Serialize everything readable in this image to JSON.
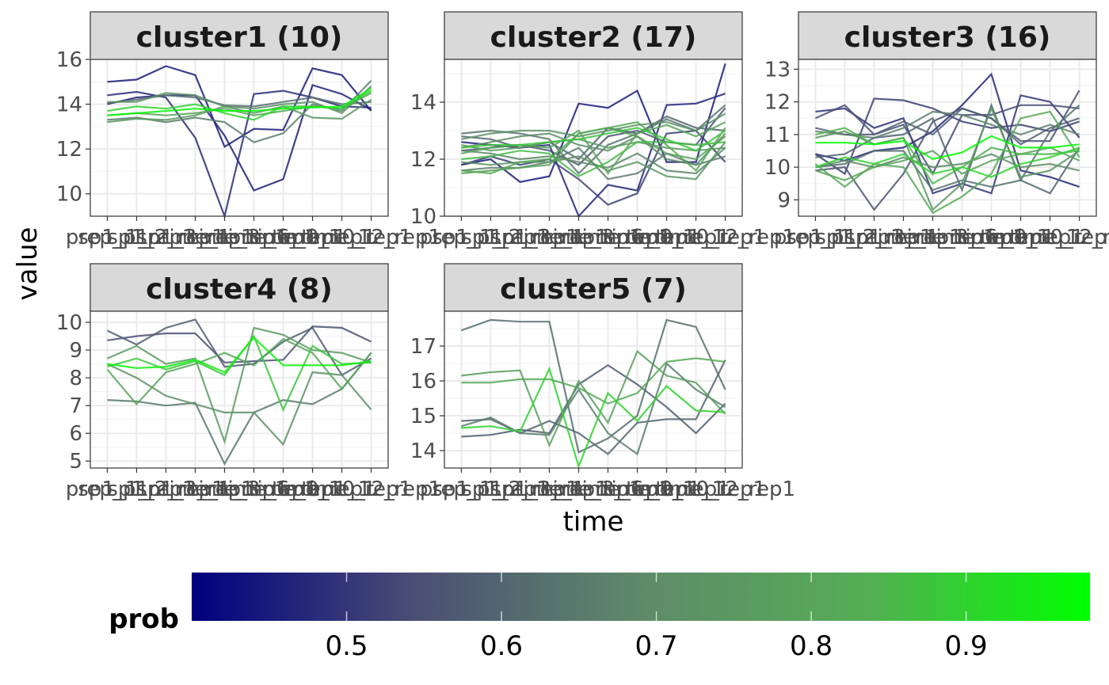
{
  "chart_data": {
    "type": "line",
    "facet_layout": "3 columns, 2 rows",
    "xlabel": "time",
    "ylabel": "value",
    "x_tick_labels_overlapping": "prep_p1 ... time_12_rep1 (labels overlap and are illegible)",
    "legend": {
      "title": "prob",
      "placement": "bottom",
      "type": "colorbar",
      "ticks": [
        0.5,
        0.6,
        0.7,
        0.8,
        0.9
      ],
      "range": [
        0.4,
        0.98
      ],
      "colors": [
        "#00007f",
        "#4a4f74",
        "#5f8a6a",
        "#55ad55",
        "#00ff00"
      ]
    },
    "x_tick_labels": [
      "prep_p1",
      "sp1_1_rep1",
      "sp1_2_rep1",
      "sp1_3_rep1",
      "time_1_rep1",
      "time_3_rep1",
      "time_6_rep1",
      "time_9_rep1",
      "time_10_rep1",
      "time_12_rep1"
    ],
    "grid": true,
    "panels": [
      {
        "strip": "cluster1 (10)",
        "ylim": [
          9.0,
          16.0
        ],
        "yticks": [
          10,
          12,
          14,
          16
        ],
        "series": [
          {
            "prob": 0.45,
            "values": [
              15.0,
              15.1,
              15.7,
              15.3,
              12.1,
              12.9,
              12.85,
              15.6,
              15.3,
              13.7
            ]
          },
          {
            "prob": 0.48,
            "values": [
              14.4,
              14.55,
              14.3,
              12.5,
              9.0,
              14.45,
              14.6,
              14.3,
              13.9,
              13.85
            ]
          },
          {
            "prob": 0.46,
            "values": [
              14.0,
              14.3,
              14.4,
              14.4,
              12.6,
              10.15,
              10.65,
              14.85,
              14.45,
              13.75
            ]
          },
          {
            "prob": 0.62,
            "values": [
              14.05,
              14.2,
              14.4,
              14.3,
              13.95,
              13.9,
              14.1,
              14.3,
              14.0,
              14.1
            ]
          },
          {
            "prob": 0.66,
            "values": [
              13.3,
              13.4,
              13.2,
              13.4,
              13.2,
              12.3,
              12.7,
              14.0,
              13.7,
              15.05
            ]
          },
          {
            "prob": 0.72,
            "values": [
              14.1,
              14.1,
              14.5,
              14.4,
              13.9,
              13.8,
              14.0,
              14.1,
              13.6,
              14.8
            ]
          },
          {
            "prob": 0.75,
            "values": [
              13.2,
              13.35,
              13.3,
              13.5,
              13.9,
              13.6,
              13.9,
              13.4,
              13.35,
              14.2
            ]
          },
          {
            "prob": 0.82,
            "values": [
              13.5,
              13.6,
              13.5,
              13.6,
              13.8,
              13.5,
              13.7,
              13.9,
              13.8,
              14.5
            ]
          },
          {
            "prob": 0.9,
            "values": [
              13.7,
              13.9,
              13.8,
              14.0,
              13.6,
              13.3,
              13.9,
              13.9,
              13.8,
              14.6
            ]
          },
          {
            "prob": 0.96,
            "values": [
              13.5,
              13.6,
              13.7,
              13.8,
              13.7,
              13.7,
              13.8,
              13.85,
              13.9,
              14.7
            ]
          }
        ]
      },
      {
        "strip": "cluster2 (17)",
        "ylim": [
          10.0,
          15.5
        ],
        "yticks": [
          10,
          12,
          14
        ],
        "series": [
          {
            "prob": 0.45,
            "values": [
              11.8,
              12.0,
              11.2,
              11.4,
              13.95,
              13.8,
              14.4,
              11.9,
              11.9,
              15.35
            ]
          },
          {
            "prob": 0.47,
            "values": [
              12.6,
              12.5,
              12.4,
              12.5,
              10.0,
              11.1,
              10.9,
              13.9,
              13.95,
              14.3
            ]
          },
          {
            "prob": 0.52,
            "values": [
              11.8,
              12.1,
              11.8,
              12.0,
              11.3,
              10.4,
              10.8,
              12.9,
              13.0,
              11.9
            ]
          },
          {
            "prob": 0.56,
            "values": [
              12.3,
              12.4,
              12.5,
              12.3,
              11.8,
              12.8,
              13.0,
              12.6,
              12.5,
              13.8
            ]
          },
          {
            "prob": 0.6,
            "values": [
              12.8,
              12.7,
              12.4,
              12.6,
              12.0,
              13.1,
              12.9,
              13.5,
              13.1,
              13.0
            ]
          },
          {
            "prob": 0.64,
            "values": [
              12.9,
              13.0,
              12.9,
              12.7,
              11.5,
              12.5,
              12.9,
              13.4,
              13.0,
              13.9
            ]
          },
          {
            "prob": 0.66,
            "values": [
              11.6,
              11.7,
              11.7,
              11.9,
              12.4,
              11.3,
              11.5,
              12.2,
              11.8,
              12.1
            ]
          },
          {
            "prob": 0.68,
            "values": [
              12.3,
              12.2,
              12.0,
              12.1,
              11.9,
              11.7,
              12.2,
              11.6,
              11.5,
              12.4
            ]
          },
          {
            "prob": 0.7,
            "values": [
              12.4,
              12.6,
              12.8,
              12.9,
              12.5,
              12.3,
              12.8,
              12.0,
              11.8,
              12.9
            ]
          },
          {
            "prob": 0.72,
            "values": [
              12.7,
              12.9,
              13.0,
              13.0,
              12.8,
              13.0,
              13.2,
              13.3,
              13.0,
              13.6
            ]
          },
          {
            "prob": 0.74,
            "values": [
              11.9,
              11.8,
              11.9,
              11.9,
              12.1,
              11.6,
              11.9,
              11.4,
              11.3,
              12.6
            ]
          },
          {
            "prob": 0.76,
            "values": [
              12.5,
              12.3,
              12.4,
              12.6,
              12.7,
              12.4,
              12.6,
              12.4,
              12.3,
              12.4
            ]
          },
          {
            "prob": 0.78,
            "values": [
              11.5,
              11.6,
              11.7,
              11.8,
              12.9,
              13.1,
              12.8,
              12.2,
              12.0,
              12.8
            ]
          },
          {
            "prob": 0.8,
            "values": [
              12.2,
              12.4,
              12.5,
              12.4,
              13.0,
              11.5,
              12.9,
              13.2,
              12.8,
              13.3
            ]
          },
          {
            "prob": 0.82,
            "values": [
              11.6,
              11.5,
              11.9,
              12.0,
              12.9,
              13.1,
              13.3,
              12.5,
              11.6,
              13.1
            ]
          },
          {
            "prob": 0.86,
            "values": [
              12.0,
              12.1,
              12.3,
              12.2,
              11.4,
              11.9,
              12.6,
              12.6,
              12.5,
              12.6
            ]
          },
          {
            "prob": 0.88,
            "values": [
              12.4,
              12.5,
              12.5,
              12.6,
              12.7,
              12.9,
              13.1,
              12.7,
              12.3,
              13.0
            ]
          }
        ]
      },
      {
        "strip": "cluster3 (16)",
        "ylim": [
          8.5,
          13.3
        ],
        "yticks": [
          9,
          10,
          11,
          12,
          13
        ],
        "series": [
          {
            "prob": 0.47,
            "values": [
              10.4,
              10.2,
              10.5,
              10.6,
              11.1,
              11.9,
              12.85,
              9.9,
              9.7,
              9.4
            ]
          },
          {
            "prob": 0.5,
            "values": [
              11.7,
              11.8,
              11.2,
              11.5,
              9.2,
              9.5,
              9.2,
              12.2,
              12.0,
              10.9
            ]
          },
          {
            "prob": 0.52,
            "values": [
              10.4,
              9.8,
              12.1,
              12.05,
              11.8,
              11.4,
              11.2,
              11.3,
              11.1,
              11.4
            ]
          },
          {
            "prob": 0.54,
            "values": [
              11.5,
              11.9,
              11.0,
              11.3,
              9.8,
              11.6,
              11.6,
              11.9,
              11.9,
              11.8
            ]
          },
          {
            "prob": 0.56,
            "values": [
              9.9,
              10.0,
              8.7,
              9.8,
              11.4,
              11.8,
              11.5,
              10.8,
              10.8,
              12.35
            ]
          },
          {
            "prob": 0.58,
            "values": [
              11.2,
              11.0,
              11.0,
              11.4,
              11.0,
              11.8,
              11.5,
              10.7,
              11.2,
              11.5
            ]
          },
          {
            "prob": 0.6,
            "values": [
              10.3,
              10.4,
              10.9,
              11.0,
              11.5,
              9.3,
              11.9,
              9.6,
              9.2,
              10.6
            ]
          },
          {
            "prob": 0.63,
            "values": [
              10.0,
              10.1,
              10.5,
              10.5,
              9.3,
              9.6,
              9.4,
              9.6,
              11.1,
              11.9
            ]
          },
          {
            "prob": 0.66,
            "values": [
              11.1,
              11.0,
              10.9,
              11.2,
              11.7,
              11.6,
              11.3,
              11.0,
              11.3,
              11.0
            ]
          },
          {
            "prob": 0.7,
            "values": [
              10.0,
              10.2,
              10.0,
              10.3,
              10.0,
              10.1,
              10.4,
              10.0,
              10.1,
              9.9
            ]
          },
          {
            "prob": 0.74,
            "values": [
              10.9,
              11.1,
              10.7,
              10.9,
              8.7,
              9.5,
              11.8,
              9.7,
              9.9,
              10.5
            ]
          },
          {
            "prob": 0.8,
            "values": [
              9.9,
              9.6,
              10.0,
              10.2,
              10.5,
              9.8,
              10.2,
              10.4,
              10.6,
              10.2
            ]
          },
          {
            "prob": 0.82,
            "values": [
              10.1,
              9.4,
              10.1,
              10.0,
              8.6,
              9.1,
              9.8,
              11.5,
              11.7,
              10.3
            ]
          },
          {
            "prob": 0.85,
            "values": [
              11.0,
              11.2,
              10.7,
              10.9,
              9.5,
              10.0,
              10.6,
              10.4,
              10.4,
              10.5
            ]
          },
          {
            "prob": 0.9,
            "values": [
              10.0,
              10.3,
              10.1,
              10.4,
              9.8,
              10.0,
              9.7,
              10.1,
              10.3,
              10.6
            ]
          },
          {
            "prob": 0.97,
            "values": [
              10.75,
              10.75,
              10.7,
              10.8,
              10.25,
              10.45,
              10.95,
              10.6,
              10.6,
              10.7
            ]
          }
        ]
      },
      {
        "strip": "cluster4 (8)",
        "ylim": [
          4.75,
          10.4
        ],
        "yticks": [
          5,
          6,
          7,
          8,
          9,
          10
        ],
        "series": [
          {
            "prob": 0.55,
            "values": [
              9.35,
              9.5,
              9.6,
              9.6,
              8.55,
              8.6,
              8.65,
              9.85,
              9.8,
              9.3
            ]
          },
          {
            "prob": 0.58,
            "values": [
              9.7,
              9.2,
              9.8,
              10.1,
              8.4,
              8.5,
              9.3,
              9.8,
              8.1,
              8.7
            ]
          },
          {
            "prob": 0.65,
            "values": [
              7.2,
              7.15,
              7.0,
              7.1,
              4.9,
              6.75,
              7.2,
              7.05,
              7.6,
              8.9
            ]
          },
          {
            "prob": 0.72,
            "values": [
              8.5,
              8.0,
              7.35,
              7.05,
              6.75,
              6.75,
              5.6,
              8.2,
              8.1,
              6.85
            ]
          },
          {
            "prob": 0.76,
            "values": [
              8.7,
              9.15,
              8.5,
              8.7,
              5.7,
              9.8,
              9.55,
              9.0,
              8.9,
              8.55
            ]
          },
          {
            "prob": 0.8,
            "values": [
              8.3,
              7.05,
              8.2,
              8.5,
              8.9,
              8.45,
              9.4,
              8.9,
              7.6,
              8.9
            ]
          },
          {
            "prob": 0.88,
            "values": [
              8.4,
              8.7,
              8.3,
              8.6,
              8.1,
              9.5,
              6.85,
              9.15,
              8.5,
              8.55
            ]
          },
          {
            "prob": 0.96,
            "values": [
              8.5,
              8.35,
              8.4,
              8.65,
              8.2,
              9.45,
              8.45,
              8.45,
              8.45,
              8.6
            ]
          }
        ]
      },
      {
        "strip": "cluster5 (7)",
        "ylim": [
          13.5,
          18.0
        ],
        "yticks": [
          14,
          15,
          16,
          17
        ],
        "series": [
          {
            "prob": 0.62,
            "values": [
              17.45,
              17.75,
              17.7,
              17.7,
              13.95,
              14.35,
              15.0,
              17.75,
              17.55,
              15.75
            ]
          },
          {
            "prob": 0.6,
            "values": [
              14.85,
              14.9,
              14.5,
              14.85,
              14.5,
              13.9,
              14.8,
              14.9,
              14.9,
              16.6
            ]
          },
          {
            "prob": 0.58,
            "values": [
              14.4,
              14.45,
              14.6,
              14.5,
              15.9,
              16.45,
              15.9,
              15.25,
              14.5,
              15.35
            ]
          },
          {
            "prob": 0.66,
            "values": [
              14.7,
              14.95,
              14.5,
              14.45,
              15.75,
              14.5,
              13.9,
              16.5,
              15.75,
              15.25
            ]
          },
          {
            "prob": 0.78,
            "values": [
              16.15,
              16.25,
              16.3,
              14.15,
              16.0,
              14.8,
              16.85,
              16.15,
              15.95,
              15.05
            ]
          },
          {
            "prob": 0.82,
            "values": [
              15.95,
              15.95,
              16.05,
              16.05,
              15.8,
              15.35,
              15.65,
              16.55,
              16.65,
              16.55
            ]
          },
          {
            "prob": 0.9,
            "values": [
              14.65,
              14.7,
              14.55,
              16.35,
              13.55,
              15.65,
              14.85,
              15.85,
              15.15,
              15.1
            ]
          }
        ]
      }
    ]
  }
}
